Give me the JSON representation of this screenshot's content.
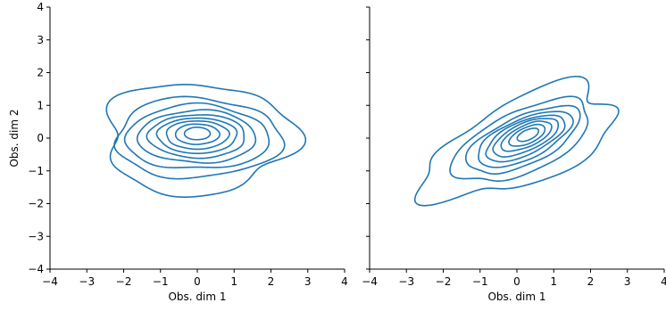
{
  "chart_data": [
    {
      "type": "contour",
      "title": "",
      "xlabel": "Obs. dim 1",
      "ylabel": "Obs. dim 2",
      "xlim": [
        -4,
        4
      ],
      "ylim": [
        -4,
        4
      ],
      "xticks": [
        -4,
        -3,
        -2,
        -1,
        0,
        1,
        2,
        3,
        4
      ],
      "yticks": [
        -4,
        -3,
        -2,
        -1,
        0,
        1,
        2,
        3,
        4
      ],
      "xtick_labels": [
        "−4",
        "−3",
        "−2",
        "−1",
        "0",
        "1",
        "2",
        "3",
        "4"
      ],
      "ytick_labels": [
        "−4",
        "−3",
        "−2",
        "−1",
        "0",
        "1",
        "2",
        "3",
        "4"
      ],
      "grid": false,
      "color": "#1f77b4",
      "contours": [
        {
          "cx": 0.0,
          "cy": 0.0,
          "rx": 2.55,
          "ry": 1.7,
          "angle": 0,
          "wobble": 0.09,
          "seed": 1
        },
        {
          "cx": 0.0,
          "cy": 0.0,
          "rx": 2.25,
          "ry": 1.22,
          "angle": 0,
          "wobble": 0.05,
          "seed": 2
        },
        {
          "cx": 0.0,
          "cy": 0.02,
          "rx": 1.95,
          "ry": 0.98,
          "angle": 0,
          "wobble": 0.04,
          "seed": 3
        },
        {
          "cx": 0.0,
          "cy": 0.04,
          "rx": 1.6,
          "ry": 0.8,
          "angle": 0,
          "wobble": 0.03,
          "seed": 4
        },
        {
          "cx": 0.0,
          "cy": 0.06,
          "rx": 1.32,
          "ry": 0.66,
          "angle": 0,
          "wobble": 0.025,
          "seed": 5
        },
        {
          "cx": 0.0,
          "cy": 0.08,
          "rx": 1.08,
          "ry": 0.54,
          "angle": 0,
          "wobble": 0.02,
          "seed": 6
        },
        {
          "cx": 0.0,
          "cy": 0.1,
          "rx": 0.85,
          "ry": 0.43,
          "angle": 0,
          "wobble": 0.02,
          "seed": 7
        },
        {
          "cx": 0.0,
          "cy": 0.12,
          "rx": 0.6,
          "ry": 0.31,
          "angle": 0,
          "wobble": 0.015,
          "seed": 8
        },
        {
          "cx": 0.0,
          "cy": 0.14,
          "rx": 0.35,
          "ry": 0.19,
          "angle": 0,
          "wobble": 0.01,
          "seed": 9
        }
      ]
    },
    {
      "type": "contour",
      "title": "",
      "xlabel": "Obs. dim 1",
      "ylabel": "",
      "xlim": [
        -4,
        4
      ],
      "ylim": [
        -4,
        4
      ],
      "xticks": [
        -4,
        -3,
        -2,
        -1,
        0,
        1,
        2,
        3,
        4
      ],
      "yticks": [
        -4,
        -3,
        -2,
        -1,
        0,
        1,
        2,
        3,
        4
      ],
      "xtick_labels": [
        "−4",
        "−3",
        "−2",
        "−1",
        "0",
        "1",
        "2",
        "3",
        "4"
      ],
      "ytick_labels": [],
      "grid": false,
      "color": "#1f77b4",
      "contours": [
        {
          "cx": 0.1,
          "cy": -0.15,
          "rx": 2.85,
          "ry": 1.25,
          "angle": 28,
          "wobble": 0.12,
          "seed": 11
        },
        {
          "cx": 0.15,
          "cy": -0.1,
          "rx": 2.05,
          "ry": 0.92,
          "angle": 28,
          "wobble": 0.05,
          "seed": 12
        },
        {
          "cx": 0.18,
          "cy": -0.06,
          "rx": 1.7,
          "ry": 0.72,
          "angle": 28,
          "wobble": 0.04,
          "seed": 13
        },
        {
          "cx": 0.2,
          "cy": -0.03,
          "rx": 1.42,
          "ry": 0.6,
          "angle": 28,
          "wobble": 0.03,
          "seed": 14
        },
        {
          "cx": 0.22,
          "cy": 0.0,
          "rx": 1.18,
          "ry": 0.5,
          "angle": 28,
          "wobble": 0.025,
          "seed": 15
        },
        {
          "cx": 0.24,
          "cy": 0.03,
          "rx": 0.98,
          "ry": 0.41,
          "angle": 28,
          "wobble": 0.02,
          "seed": 16
        },
        {
          "cx": 0.26,
          "cy": 0.06,
          "rx": 0.76,
          "ry": 0.32,
          "angle": 28,
          "wobble": 0.02,
          "seed": 17
        },
        {
          "cx": 0.28,
          "cy": 0.08,
          "rx": 0.54,
          "ry": 0.24,
          "angle": 28,
          "wobble": 0.015,
          "seed": 18
        },
        {
          "cx": 0.3,
          "cy": 0.1,
          "rx": 0.32,
          "ry": 0.15,
          "angle": 28,
          "wobble": 0.01,
          "seed": 19
        }
      ]
    }
  ]
}
